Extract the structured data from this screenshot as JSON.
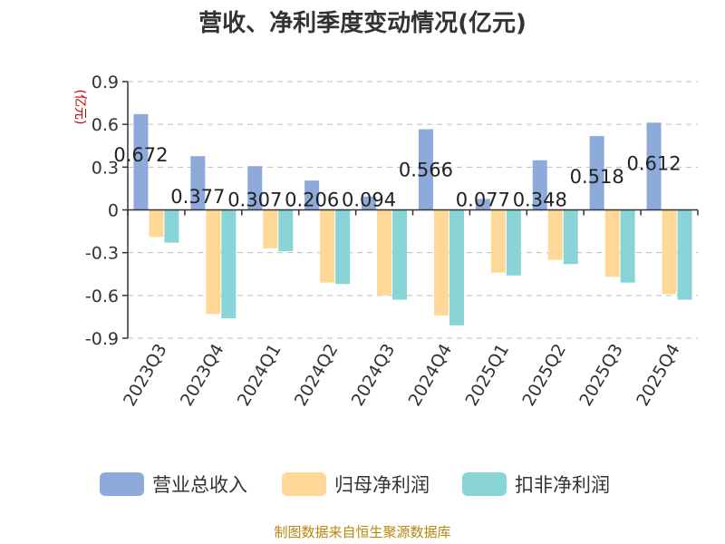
{
  "chart_data": {
    "type": "bar",
    "title": "营收、净利季度变动情况(亿元)",
    "ylabel": "(亿元)",
    "ylim": [
      -0.9,
      0.9
    ],
    "yticks": [
      0.9,
      0.6,
      0.3,
      0,
      -0.3,
      -0.6,
      -0.9
    ],
    "ytick_labels": [
      "0.9",
      "0.6",
      "0.3",
      "0",
      "-0.3",
      "-0.6",
      "-0.9"
    ],
    "grid": true,
    "legend_position": "bottom",
    "categories": [
      "2023Q3",
      "2023Q4",
      "2024Q1",
      "2024Q2",
      "2024Q3",
      "2024Q4",
      "2025Q1",
      "2025Q2",
      "2025Q3",
      "2025Q4"
    ],
    "series": [
      {
        "name": "营业总收入",
        "color": "#8eaadb",
        "values": [
          0.672,
          0.377,
          0.307,
          0.206,
          0.094,
          0.566,
          0.077,
          0.348,
          0.518,
          0.612
        ],
        "labels": [
          "0.672",
          "0.377",
          "0.307",
          "0.206",
          "0.094",
          "0.566",
          "0.077",
          "0.348",
          "0.518",
          "0.612"
        ]
      },
      {
        "name": "归母净利润",
        "color": "#ffd898",
        "values": [
          -0.19,
          -0.73,
          -0.27,
          -0.51,
          -0.6,
          -0.74,
          -0.44,
          -0.35,
          -0.47,
          -0.59
        ]
      },
      {
        "name": "扣非净利润",
        "color": "#88d4d6",
        "values": [
          -0.23,
          -0.76,
          -0.29,
          -0.52,
          -0.63,
          -0.81,
          -0.46,
          -0.38,
          -0.51,
          -0.63
        ]
      }
    ]
  },
  "footer": "制图数据来自恒生聚源数据库"
}
